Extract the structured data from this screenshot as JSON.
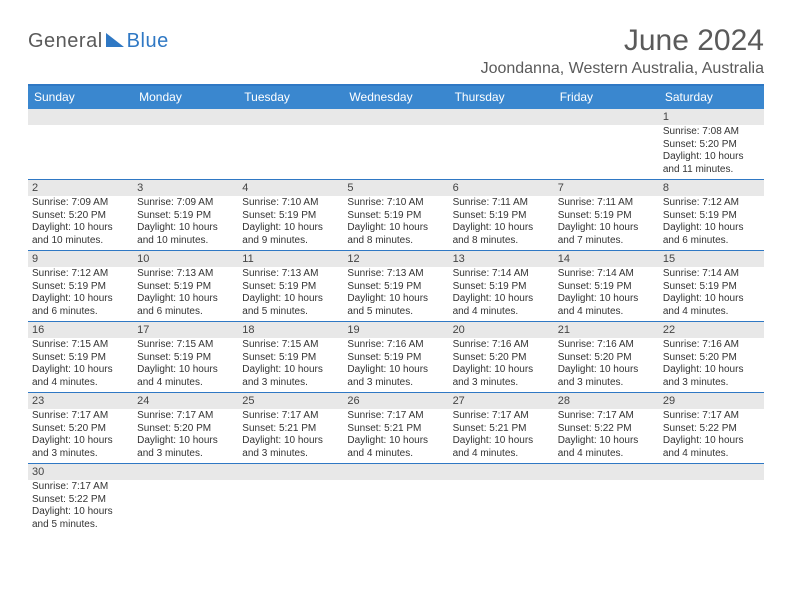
{
  "logo": {
    "part1": "General",
    "part2": "Blue"
  },
  "title": "June 2024",
  "location": "Joondanna, Western Australia, Australia",
  "colors": {
    "header_bg": "#3a87cf",
    "border": "#2f78c4",
    "daynum_bg": "#e8e8e8",
    "text": "#333333",
    "title_text": "#5a5a5a"
  },
  "days_of_week": [
    "Sunday",
    "Monday",
    "Tuesday",
    "Wednesday",
    "Thursday",
    "Friday",
    "Saturday"
  ],
  "weeks": [
    [
      null,
      null,
      null,
      null,
      null,
      null,
      {
        "n": "1",
        "sr": "Sunrise: 7:08 AM",
        "ss": "Sunset: 5:20 PM",
        "dl": "Daylight: 10 hours and 11 minutes."
      }
    ],
    [
      {
        "n": "2",
        "sr": "Sunrise: 7:09 AM",
        "ss": "Sunset: 5:20 PM",
        "dl": "Daylight: 10 hours and 10 minutes."
      },
      {
        "n": "3",
        "sr": "Sunrise: 7:09 AM",
        "ss": "Sunset: 5:19 PM",
        "dl": "Daylight: 10 hours and 10 minutes."
      },
      {
        "n": "4",
        "sr": "Sunrise: 7:10 AM",
        "ss": "Sunset: 5:19 PM",
        "dl": "Daylight: 10 hours and 9 minutes."
      },
      {
        "n": "5",
        "sr": "Sunrise: 7:10 AM",
        "ss": "Sunset: 5:19 PM",
        "dl": "Daylight: 10 hours and 8 minutes."
      },
      {
        "n": "6",
        "sr": "Sunrise: 7:11 AM",
        "ss": "Sunset: 5:19 PM",
        "dl": "Daylight: 10 hours and 8 minutes."
      },
      {
        "n": "7",
        "sr": "Sunrise: 7:11 AM",
        "ss": "Sunset: 5:19 PM",
        "dl": "Daylight: 10 hours and 7 minutes."
      },
      {
        "n": "8",
        "sr": "Sunrise: 7:12 AM",
        "ss": "Sunset: 5:19 PM",
        "dl": "Daylight: 10 hours and 6 minutes."
      }
    ],
    [
      {
        "n": "9",
        "sr": "Sunrise: 7:12 AM",
        "ss": "Sunset: 5:19 PM",
        "dl": "Daylight: 10 hours and 6 minutes."
      },
      {
        "n": "10",
        "sr": "Sunrise: 7:13 AM",
        "ss": "Sunset: 5:19 PM",
        "dl": "Daylight: 10 hours and 6 minutes."
      },
      {
        "n": "11",
        "sr": "Sunrise: 7:13 AM",
        "ss": "Sunset: 5:19 PM",
        "dl": "Daylight: 10 hours and 5 minutes."
      },
      {
        "n": "12",
        "sr": "Sunrise: 7:13 AM",
        "ss": "Sunset: 5:19 PM",
        "dl": "Daylight: 10 hours and 5 minutes."
      },
      {
        "n": "13",
        "sr": "Sunrise: 7:14 AM",
        "ss": "Sunset: 5:19 PM",
        "dl": "Daylight: 10 hours and 4 minutes."
      },
      {
        "n": "14",
        "sr": "Sunrise: 7:14 AM",
        "ss": "Sunset: 5:19 PM",
        "dl": "Daylight: 10 hours and 4 minutes."
      },
      {
        "n": "15",
        "sr": "Sunrise: 7:14 AM",
        "ss": "Sunset: 5:19 PM",
        "dl": "Daylight: 10 hours and 4 minutes."
      }
    ],
    [
      {
        "n": "16",
        "sr": "Sunrise: 7:15 AM",
        "ss": "Sunset: 5:19 PM",
        "dl": "Daylight: 10 hours and 4 minutes."
      },
      {
        "n": "17",
        "sr": "Sunrise: 7:15 AM",
        "ss": "Sunset: 5:19 PM",
        "dl": "Daylight: 10 hours and 4 minutes."
      },
      {
        "n": "18",
        "sr": "Sunrise: 7:15 AM",
        "ss": "Sunset: 5:19 PM",
        "dl": "Daylight: 10 hours and 3 minutes."
      },
      {
        "n": "19",
        "sr": "Sunrise: 7:16 AM",
        "ss": "Sunset: 5:19 PM",
        "dl": "Daylight: 10 hours and 3 minutes."
      },
      {
        "n": "20",
        "sr": "Sunrise: 7:16 AM",
        "ss": "Sunset: 5:20 PM",
        "dl": "Daylight: 10 hours and 3 minutes."
      },
      {
        "n": "21",
        "sr": "Sunrise: 7:16 AM",
        "ss": "Sunset: 5:20 PM",
        "dl": "Daylight: 10 hours and 3 minutes."
      },
      {
        "n": "22",
        "sr": "Sunrise: 7:16 AM",
        "ss": "Sunset: 5:20 PM",
        "dl": "Daylight: 10 hours and 3 minutes."
      }
    ],
    [
      {
        "n": "23",
        "sr": "Sunrise: 7:17 AM",
        "ss": "Sunset: 5:20 PM",
        "dl": "Daylight: 10 hours and 3 minutes."
      },
      {
        "n": "24",
        "sr": "Sunrise: 7:17 AM",
        "ss": "Sunset: 5:20 PM",
        "dl": "Daylight: 10 hours and 3 minutes."
      },
      {
        "n": "25",
        "sr": "Sunrise: 7:17 AM",
        "ss": "Sunset: 5:21 PM",
        "dl": "Daylight: 10 hours and 3 minutes."
      },
      {
        "n": "26",
        "sr": "Sunrise: 7:17 AM",
        "ss": "Sunset: 5:21 PM",
        "dl": "Daylight: 10 hours and 4 minutes."
      },
      {
        "n": "27",
        "sr": "Sunrise: 7:17 AM",
        "ss": "Sunset: 5:21 PM",
        "dl": "Daylight: 10 hours and 4 minutes."
      },
      {
        "n": "28",
        "sr": "Sunrise: 7:17 AM",
        "ss": "Sunset: 5:22 PM",
        "dl": "Daylight: 10 hours and 4 minutes."
      },
      {
        "n": "29",
        "sr": "Sunrise: 7:17 AM",
        "ss": "Sunset: 5:22 PM",
        "dl": "Daylight: 10 hours and 4 minutes."
      }
    ],
    [
      {
        "n": "30",
        "sr": "Sunrise: 7:17 AM",
        "ss": "Sunset: 5:22 PM",
        "dl": "Daylight: 10 hours and 5 minutes."
      },
      null,
      null,
      null,
      null,
      null,
      null
    ]
  ]
}
